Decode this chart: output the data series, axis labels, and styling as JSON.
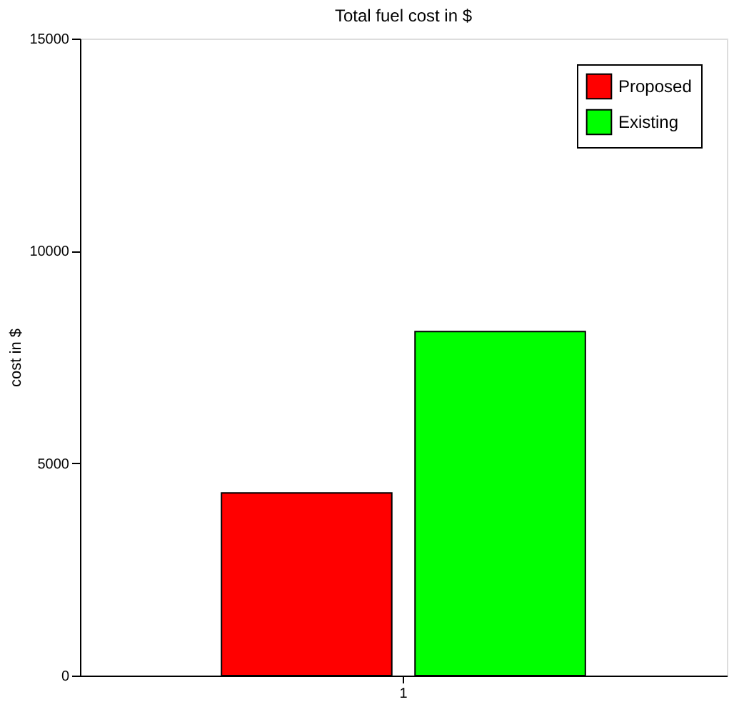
{
  "chart_data": {
    "type": "bar",
    "title": "Total fuel cost in $",
    "ylabel": "cost in $",
    "categories": [
      "1"
    ],
    "series": [
      {
        "name": "Proposed",
        "color": "#ff0000",
        "values": [
          4300
        ]
      },
      {
        "name": "Existing",
        "color": "#00ff00",
        "values": [
          8100
        ]
      }
    ],
    "ylim": [
      0,
      15000
    ],
    "yticks": [
      0,
      5000,
      10000,
      15000
    ],
    "grid": false,
    "legend": "top right"
  }
}
